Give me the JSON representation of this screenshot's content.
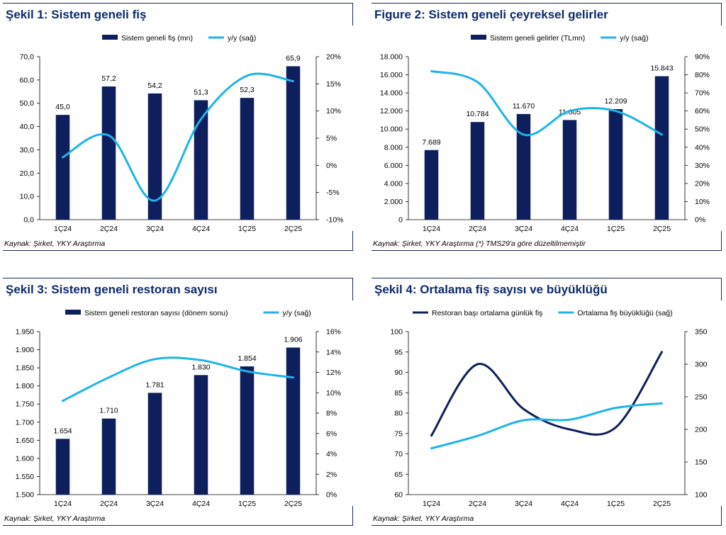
{
  "colors": {
    "bar": "#0d1f5c",
    "line_right": "#1cb4ea",
    "line_left": "#0d1f5c",
    "title": "#0d2a6b"
  },
  "panels": [
    {
      "title": "Şekil 1: Sistem geneli fiş",
      "source": "Kaynak: Şirket, YKY Araştırma",
      "chart_data": {
        "type": "bar",
        "categories": [
          "1Ç24",
          "2Ç24",
          "3Ç24",
          "4Ç24",
          "1Ç25",
          "2Ç25"
        ],
        "series": [
          {
            "name": "Sistem geneli fiş (mn)",
            "kind": "bar",
            "axis": "left",
            "values": [
              45.0,
              57.2,
              54.2,
              51.3,
              52.3,
              65.9
            ],
            "labels": [
              "45,0",
              "57,2",
              "54,2",
              "51,3",
              "52,3",
              "65,9"
            ]
          },
          {
            "name": "y/y (sağ)",
            "kind": "line",
            "axis": "right",
            "values": [
              1.5,
              5.5,
              -6.5,
              8.5,
              16.5,
              15.5
            ]
          }
        ],
        "ylim": [
          0,
          70
        ],
        "yticks": [
          0,
          10,
          20,
          30,
          40,
          50,
          60,
          70
        ],
        "ytick_labels": [
          "0,0",
          "10,0",
          "20,0",
          "30,0",
          "40,0",
          "50,0",
          "60,0",
          "70,0"
        ],
        "y2lim": [
          -10,
          20
        ],
        "y2ticks": [
          -10,
          -5,
          0,
          5,
          10,
          15,
          20
        ],
        "y2tick_labels": [
          "-10%",
          "-5%",
          "0%",
          "5%",
          "10%",
          "15%",
          "20%"
        ],
        "legend": "top",
        "grid": false
      }
    },
    {
      "title": "Figure 2: Sistem geneli çeyreksel gelirler",
      "source": "Kaynak: Şirket, YKY Araştırma (*) TMS29'a göre düzeltilmemiştir",
      "chart_data": {
        "type": "bar",
        "categories": [
          "1Ç24",
          "2Ç24",
          "3Ç24",
          "4Ç24",
          "1Ç25",
          "2Ç25"
        ],
        "series": [
          {
            "name": "Sistem geneli gelirler (TLmn)",
            "kind": "bar",
            "axis": "left",
            "values": [
              7689,
              10784,
              11670,
              11005,
              12209,
              15843
            ],
            "labels": [
              "7.689",
              "10.784",
              "11.670",
              "11.005",
              "12.209",
              "15.843"
            ]
          },
          {
            "name": "y/y (sağ)",
            "kind": "line",
            "axis": "right",
            "values": [
              82,
              76,
              47,
              60,
              60,
              47
            ]
          }
        ],
        "ylim": [
          0,
          18000
        ],
        "yticks": [
          0,
          2000,
          4000,
          6000,
          8000,
          10000,
          12000,
          14000,
          16000,
          18000
        ],
        "ytick_labels": [
          "0",
          "2.000",
          "4.000",
          "6.000",
          "8.000",
          "10.000",
          "12.000",
          "14.000",
          "16.000",
          "18.000"
        ],
        "y2lim": [
          0,
          90
        ],
        "y2ticks": [
          0,
          10,
          20,
          30,
          40,
          50,
          60,
          70,
          80,
          90
        ],
        "y2tick_labels": [
          "0%",
          "10%",
          "20%",
          "30%",
          "40%",
          "50%",
          "60%",
          "70%",
          "80%",
          "90%"
        ],
        "legend": "top",
        "grid": false
      }
    },
    {
      "title": "Şekil 3: Sistem geneli restoran sayısı",
      "source": "Kaynak: Şirket, YKY Araştırma",
      "chart_data": {
        "type": "bar",
        "categories": [
          "1Ç24",
          "2Ç24",
          "3Ç24",
          "4Ç24",
          "1Ç25",
          "2Ç25"
        ],
        "series": [
          {
            "name": "Sistem geneli restoran sayısı (dönem sonu)",
            "kind": "bar",
            "axis": "left",
            "values": [
              1654,
              1710,
              1781,
              1830,
              1854,
              1906
            ],
            "labels": [
              "1.654",
              "1.710",
              "1.781",
              "1.830",
              "1.854",
              "1.906"
            ]
          },
          {
            "name": "y/y (sağ)",
            "kind": "line",
            "axis": "right",
            "values": [
              9.2,
              11.5,
              13.3,
              13.2,
              12.1,
              11.5
            ]
          }
        ],
        "ylim": [
          1500,
          1950
        ],
        "yticks": [
          1500,
          1550,
          1600,
          1650,
          1700,
          1750,
          1800,
          1850,
          1900,
          1950
        ],
        "ytick_labels": [
          "1.500",
          "1.550",
          "1.600",
          "1.650",
          "1.700",
          "1.750",
          "1.800",
          "1.850",
          "1.900",
          "1.950"
        ],
        "y2lim": [
          0,
          16
        ],
        "y2ticks": [
          0,
          2,
          4,
          6,
          8,
          10,
          12,
          14,
          16
        ],
        "y2tick_labels": [
          "0%",
          "2%",
          "4%",
          "6%",
          "8%",
          "10%",
          "12%",
          "14%",
          "16%"
        ],
        "legend": "top",
        "grid": false
      }
    },
    {
      "title": "Şekil 4: Ortalama fiş sayısı ve büyüklüğü",
      "source": "Kaynak: Şirket, YKY Araştırma",
      "chart_data": {
        "type": "line",
        "categories": [
          "1Ç24",
          "2Ç24",
          "3Ç24",
          "4Ç24",
          "1Ç25",
          "2Ç25"
        ],
        "series": [
          {
            "name": "Restoran başı ortalama günlük fiş",
            "kind": "line",
            "axis": "left",
            "values": [
              74.5,
              92,
              81,
              76,
              76.5,
              95
            ]
          },
          {
            "name": "Ortalama fiş büyüklüğü (sağ)",
            "kind": "line",
            "axis": "right",
            "values": [
              171,
              190,
              214,
              215,
              233,
              240
            ]
          }
        ],
        "ylim": [
          60,
          100
        ],
        "yticks": [
          60,
          65,
          70,
          75,
          80,
          85,
          90,
          95,
          100
        ],
        "ytick_labels": [
          "60",
          "65",
          "70",
          "75",
          "80",
          "85",
          "90",
          "95",
          "100"
        ],
        "y2lim": [
          100,
          350
        ],
        "y2ticks": [
          100,
          150,
          200,
          250,
          300,
          350
        ],
        "y2tick_labels": [
          "100",
          "150",
          "200",
          "250",
          "300",
          "350"
        ],
        "legend": "top",
        "grid": false
      }
    }
  ]
}
